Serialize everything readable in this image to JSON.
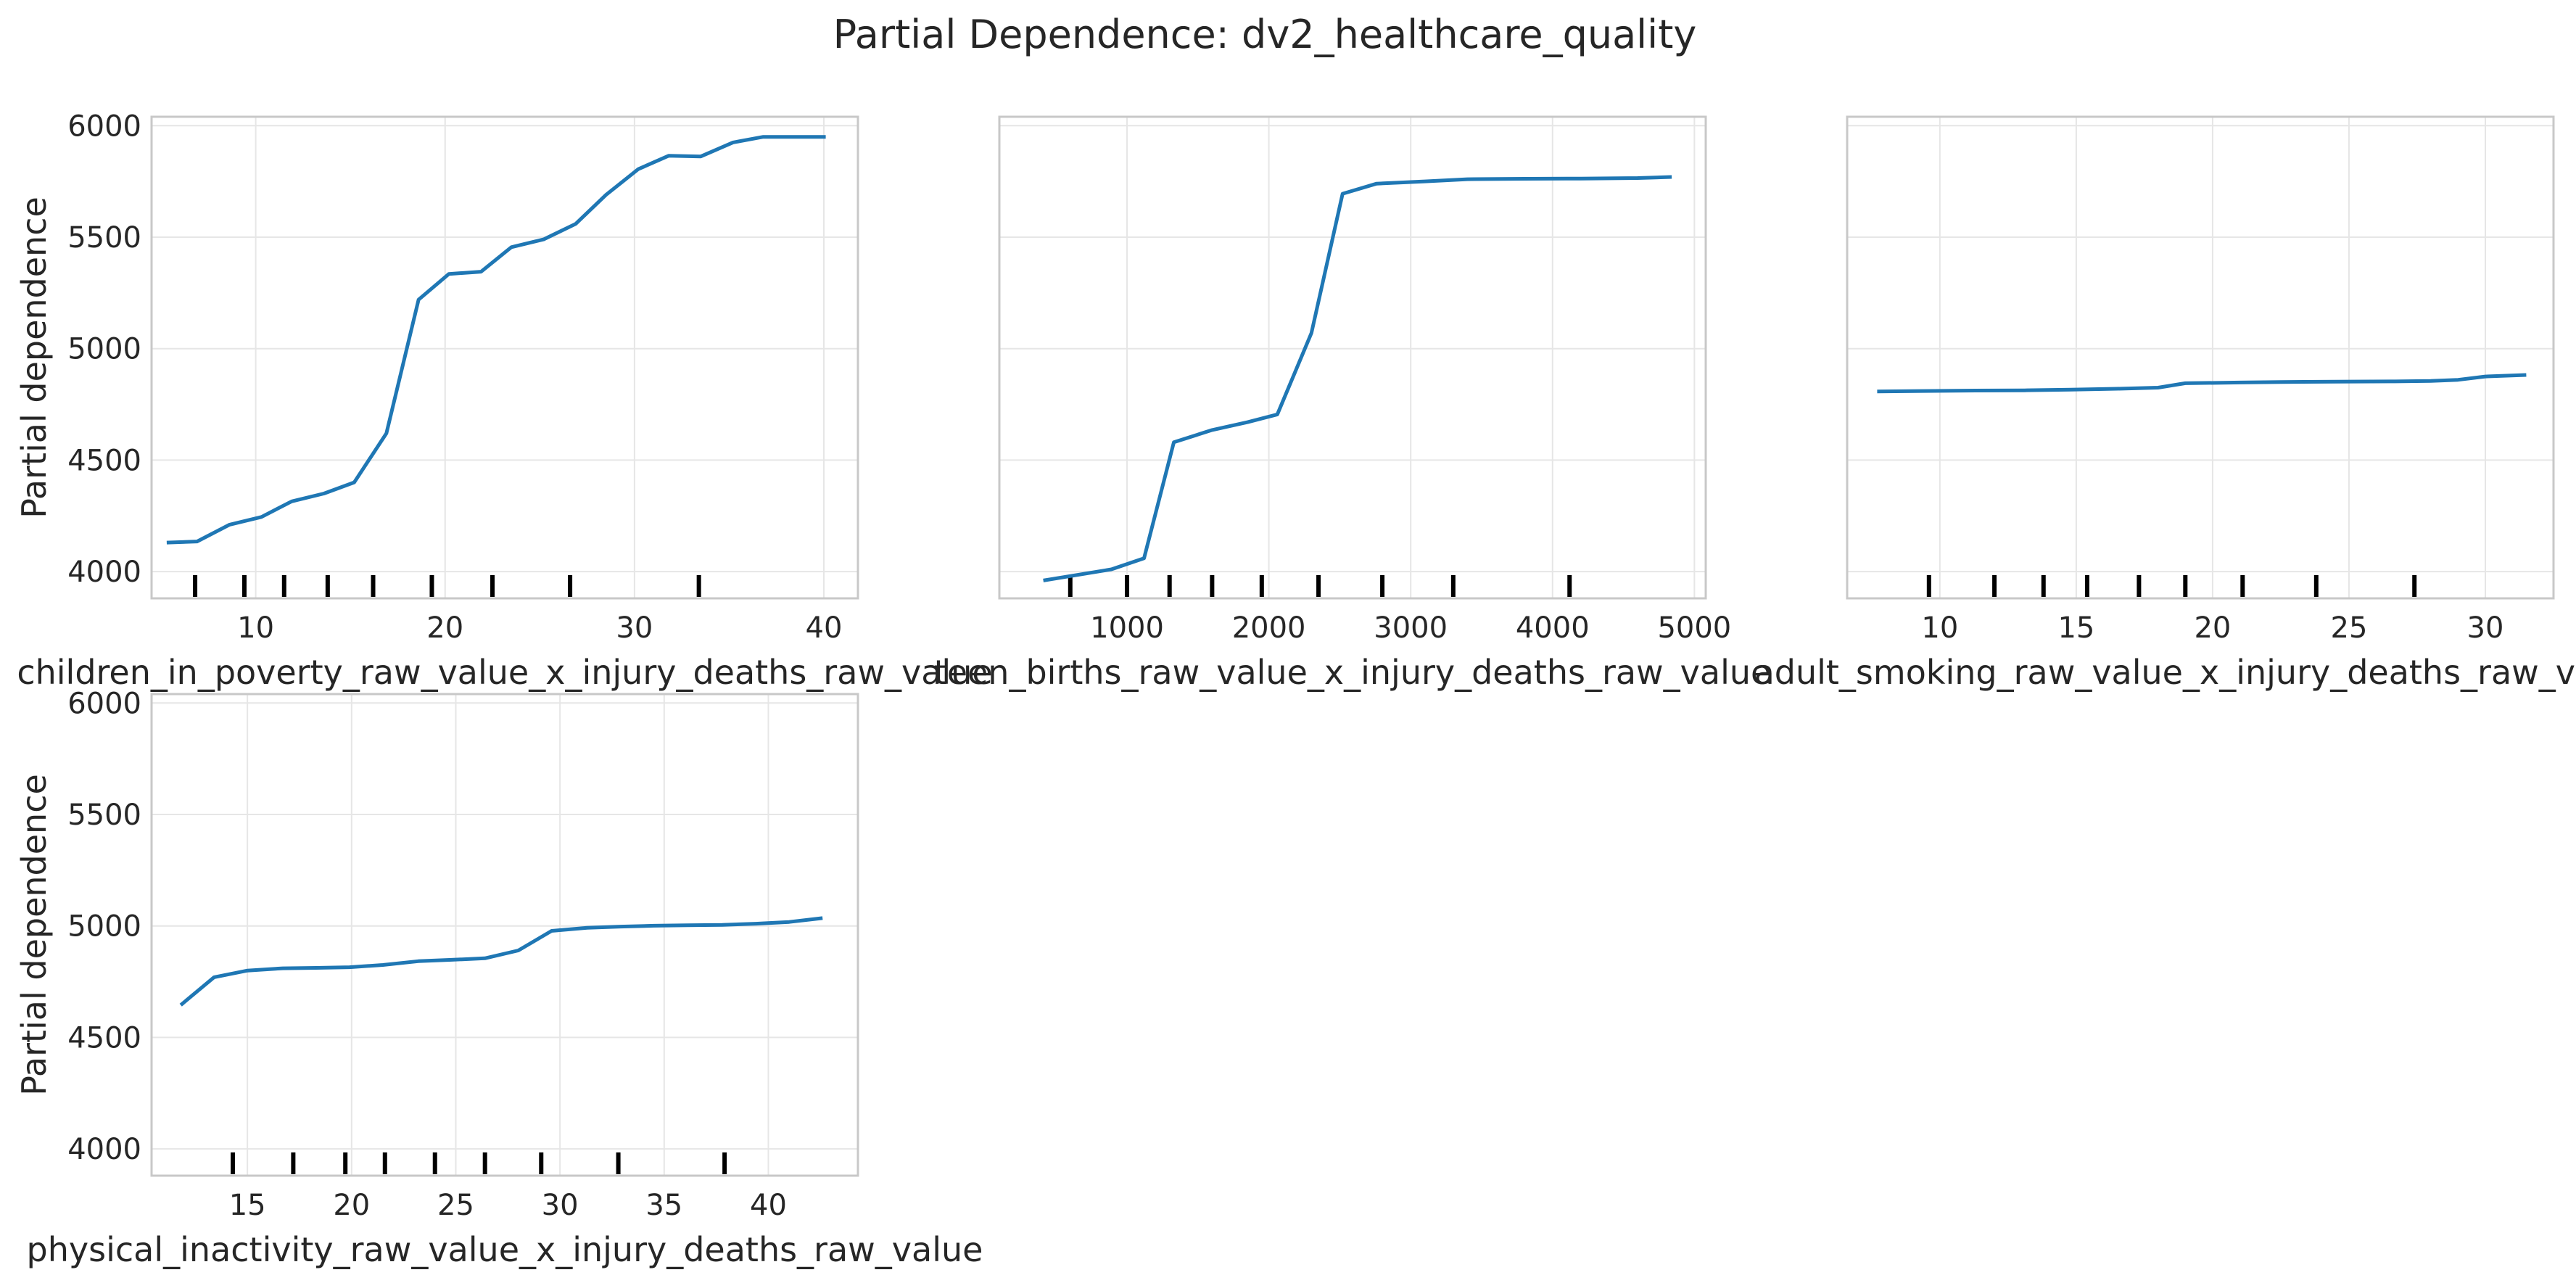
{
  "title": "Partial Dependence: dv2_healthcare_quality",
  "colors": {
    "line": "#1f77b4",
    "grid": "#e6e6e6",
    "frame": "#c8c8c8",
    "rug": "#000000",
    "text": "#262626"
  },
  "chart_data": [
    {
      "type": "line",
      "xlabel": "children_in_poverty_raw_value_x_injury_deaths_raw_value",
      "ylabel": "Partial dependence",
      "xlim": [
        4.5,
        41.8
      ],
      "ylim": [
        3880,
        6040
      ],
      "xticks": [
        10,
        20,
        30,
        40
      ],
      "yticks": [
        4000,
        4500,
        5000,
        5500,
        6000
      ],
      "show_yticklabels": true,
      "grid": true,
      "x": [
        5.3,
        6.9,
        8.6,
        10.3,
        11.9,
        13.6,
        15.2,
        16.9,
        18.6,
        20.2,
        21.9,
        23.5,
        25.2,
        26.9,
        28.5,
        30.2,
        31.8,
        33.5,
        35.2,
        36.8,
        38.5,
        40.1
      ],
      "y": [
        4130,
        4135,
        4210,
        4245,
        4315,
        4350,
        4400,
        4620,
        5220,
        5335,
        5345,
        5455,
        5490,
        5560,
        5690,
        5805,
        5865,
        5862,
        5925,
        5950,
        5950,
        5950
      ],
      "rug": [
        6.8,
        9.4,
        11.5,
        13.8,
        16.2,
        19.3,
        22.5,
        26.6,
        33.4
      ]
    },
    {
      "type": "line",
      "xlabel": "teen_births_raw_value_x_injury_deaths_raw_value",
      "ylabel": "",
      "xlim": [
        100,
        5080
      ],
      "ylim": [
        3880,
        6040
      ],
      "xticks": [
        1000,
        2000,
        3000,
        4000,
        5000
      ],
      "yticks": [
        4000,
        4500,
        5000,
        5500,
        6000
      ],
      "show_yticklabels": false,
      "grid": true,
      "x": [
        410,
        890,
        1120,
        1330,
        1600,
        1850,
        2060,
        2300,
        2520,
        2760,
        3100,
        3400,
        3800,
        4200,
        4600,
        4840
      ],
      "y": [
        3960,
        4010,
        4060,
        4580,
        4635,
        4670,
        4705,
        5070,
        5695,
        5740,
        5750,
        5760,
        5762,
        5763,
        5765,
        5770
      ],
      "rug": [
        600,
        1000,
        1300,
        1600,
        1950,
        2350,
        2800,
        3300,
        4120
      ]
    },
    {
      "type": "line",
      "xlabel": "adult_smoking_raw_value_x_injury_deaths_raw_value",
      "ylabel": "",
      "xlim": [
        6.6,
        32.5
      ],
      "ylim": [
        3880,
        6040
      ],
      "xticks": [
        10,
        15,
        20,
        25,
        30
      ],
      "yticks": [
        4000,
        4500,
        5000,
        5500,
        6000
      ],
      "show_yticklabels": false,
      "grid": true,
      "x": [
        7.7,
        9.4,
        11.3,
        13.1,
        14.8,
        16.5,
        18.0,
        19.0,
        21.0,
        22.5,
        24.5,
        26.5,
        28.0,
        29.0,
        30.0,
        31.5
      ],
      "y": [
        4808,
        4810,
        4812,
        4813,
        4816,
        4820,
        4825,
        4845,
        4848,
        4850,
        4852,
        4853,
        4855,
        4860,
        4875,
        4882
      ],
      "rug": [
        9.6,
        12.0,
        13.8,
        15.4,
        17.3,
        19.0,
        21.1,
        23.8,
        27.4
      ]
    },
    {
      "type": "line",
      "xlabel": "physical_inactivity_raw_value_x_injury_deaths_raw_value",
      "ylabel": "Partial dependence",
      "xlim": [
        10.4,
        44.3
      ],
      "ylim": [
        3880,
        6040
      ],
      "xticks": [
        15,
        20,
        25,
        30,
        35,
        40
      ],
      "yticks": [
        4000,
        4500,
        5000,
        5500,
        6000
      ],
      "show_yticklabels": true,
      "grid": true,
      "x": [
        11.8,
        13.4,
        15.0,
        16.7,
        18.3,
        19.9,
        21.5,
        23.2,
        24.8,
        26.4,
        28.0,
        29.6,
        31.3,
        32.9,
        34.5,
        36.1,
        37.8,
        39.4,
        41.0,
        42.6
      ],
      "y": [
        4645,
        4770,
        4800,
        4810,
        4812,
        4815,
        4825,
        4842,
        4848,
        4855,
        4890,
        4978,
        4992,
        4997,
        5001,
        5003,
        5005,
        5010,
        5018,
        5035
      ],
      "rug": [
        14.3,
        17.2,
        19.7,
        21.6,
        24.0,
        26.4,
        29.1,
        32.8,
        37.9
      ]
    }
  ]
}
